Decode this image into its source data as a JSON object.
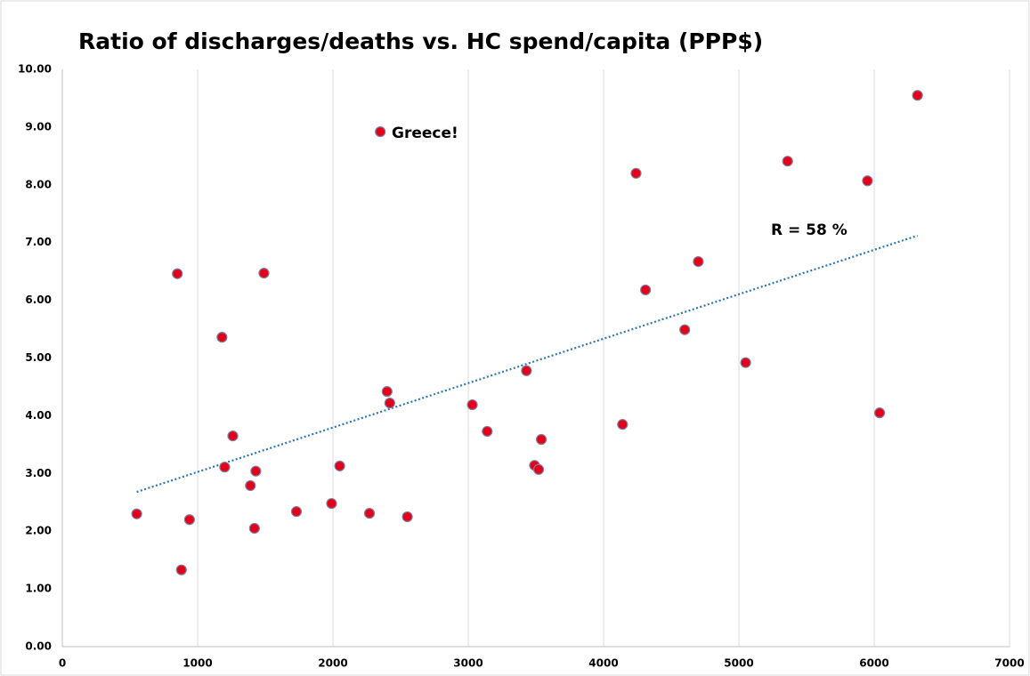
{
  "chart_data": {
    "type": "scatter",
    "title": "Ratio of discharges/deaths vs.  HC spend/capita (PPP$)",
    "series": [
      {
        "color": "#e3001b",
        "x": [
          550,
          850,
          880,
          940,
          1180,
          1200,
          1260,
          1390,
          1420,
          1430,
          1490,
          1730,
          1990,
          2050,
          2270,
          2350,
          2400,
          2420,
          2550,
          3030,
          3140,
          3430,
          3490,
          3520,
          3540,
          4140,
          4240,
          4310,
          4600,
          4700,
          5050,
          5360,
          5950,
          6040,
          6320
        ],
        "values": [
          2.3,
          6.46,
          1.33,
          2.2,
          5.36,
          3.11,
          3.65,
          2.79,
          2.05,
          3.04,
          6.47,
          2.34,
          2.48,
          3.13,
          2.31,
          8.92,
          4.42,
          4.22,
          2.25,
          4.19,
          3.73,
          4.78,
          3.14,
          3.07,
          3.59,
          3.85,
          8.2,
          6.18,
          5.49,
          6.67,
          4.92,
          8.41,
          8.07,
          4.05,
          9.55
        ]
      }
    ],
    "trendline": {
      "color": "#2e75b6",
      "x": [
        550,
        6320
      ],
      "values": [
        2.68,
        7.12
      ]
    },
    "annotations": [
      "Greece!",
      "R = 58 %"
    ],
    "xlim": [
      0,
      7000
    ],
    "xticks": [
      0,
      1000,
      2000,
      3000,
      4000,
      5000,
      6000,
      7000
    ],
    "ylim": [
      0,
      10
    ],
    "yticks": [
      {
        "value": 0,
        "label": "0.00"
      },
      {
        "value": 1,
        "label": "1.00"
      },
      {
        "value": 2,
        "label": "2.00"
      },
      {
        "value": 3,
        "label": "3.00"
      },
      {
        "value": 4,
        "label": "4.00"
      },
      {
        "value": 5,
        "label": "5.00"
      },
      {
        "value": 6,
        "label": "6.00"
      },
      {
        "value": 7,
        "label": "7.00"
      },
      {
        "value": 8,
        "label": "8.00"
      },
      {
        "value": 9,
        "label": "9.00"
      },
      {
        "value": 10,
        "label": "10.00"
      }
    ],
    "grid": "x"
  }
}
